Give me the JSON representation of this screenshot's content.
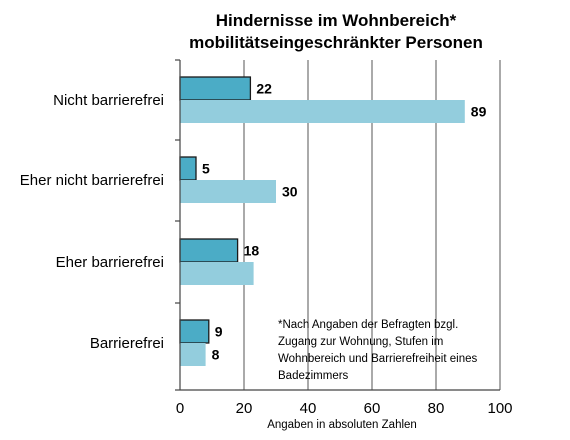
{
  "chart_data": {
    "type": "bar",
    "orientation": "horizontal",
    "title": [
      "Hindernisse im Wohnbereich*",
      "mobilitätseingeschränkter Personen"
    ],
    "categories": [
      "Nicht barrierefrei",
      "Eher nicht barrierefrei",
      "Eher barrierefrei",
      "Barrierefrei"
    ],
    "series": [
      {
        "values": [
          22,
          5,
          18,
          9
        ],
        "color": "#4bacc6",
        "outlined": true
      },
      {
        "values": [
          89,
          30,
          23,
          8
        ],
        "color": "#93cddd",
        "outlined": false
      }
    ],
    "data_labels": [
      [
        "22",
        "89"
      ],
      [
        "5",
        "30"
      ],
      [
        "18",
        ""
      ],
      [
        "9",
        "8"
      ]
    ],
    "xlim": [
      0,
      100
    ],
    "xticks": [
      0,
      20,
      40,
      60,
      80,
      100
    ],
    "xlabel": "Angaben in absoluten Zahlen",
    "grid": "vertical",
    "legend": "none",
    "annotation": [
      "*Nach Angaben der Befragten bzgl.",
      "Zugang zur Wohnung, Stufen im",
      "Wohnbereich und Barrierefreiheit eines",
      "Badezimmers"
    ]
  }
}
